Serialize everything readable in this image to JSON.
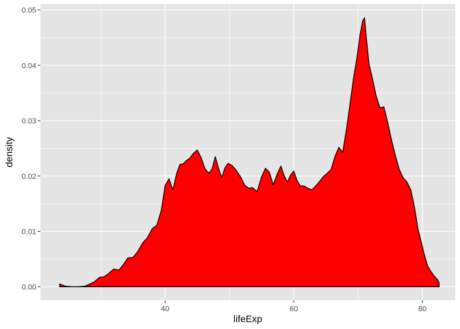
{
  "chart_data": {
    "type": "area",
    "title": "",
    "xlabel": "lifeExp",
    "ylabel": "density",
    "xlim": [
      20.6,
      85.1
    ],
    "ylim": [
      -0.00243,
      0.05105
    ],
    "x_ticks": [
      40,
      60,
      80
    ],
    "x_tick_labels": [
      "40",
      "60",
      "80"
    ],
    "y_ticks": [
      0,
      0.01,
      0.02,
      0.03,
      0.04,
      0.05
    ],
    "y_tick_labels": [
      "0.00",
      "0.01",
      "0.02",
      "0.03",
      "0.04",
      "0.05"
    ],
    "grid": true,
    "legend": "none",
    "colors": {
      "panel_background": "#e5e5e5",
      "grid_line": "#ffffff",
      "fill": "#ff0000",
      "outline": "#000000",
      "tick": "#333333"
    },
    "x": [
      23.6,
      24.5,
      25.5,
      26.5,
      27.5,
      28.3,
      29.0,
      29.8,
      30.5,
      31.2,
      32.0,
      32.8,
      33.5,
      34.2,
      35.0,
      35.7,
      36.5,
      37.2,
      38.0,
      38.7,
      39.4,
      40.0,
      40.6,
      41.2,
      41.8,
      42.3,
      42.8,
      43.3,
      43.8,
      44.4,
      45.0,
      45.6,
      46.2,
      46.8,
      47.3,
      47.8,
      48.3,
      48.8,
      49.3,
      49.8,
      50.4,
      51.0,
      51.7,
      52.4,
      53.0,
      53.6,
      54.3,
      55.0,
      55.6,
      56.2,
      56.8,
      57.4,
      58.0,
      58.5,
      59.0,
      59.5,
      60.0,
      60.5,
      61.0,
      61.6,
      62.2,
      62.8,
      63.4,
      64.0,
      64.6,
      65.2,
      65.8,
      66.4,
      67.0,
      67.6,
      68.2,
      68.8,
      69.3,
      69.8,
      70.3,
      70.7,
      71.0,
      71.3,
      71.7,
      72.2,
      72.8,
      73.4,
      74.0,
      74.6,
      75.2,
      75.8,
      76.4,
      77.0,
      77.6,
      78.2,
      78.8,
      79.3,
      79.8,
      80.3,
      80.8,
      81.3,
      81.8,
      82.4,
      82.6
    ],
    "y": [
      0.0005,
      0.0001,
      0.0,
      0.0,
      0.0001,
      0.0005,
      0.0009,
      0.0017,
      0.0018,
      0.0024,
      0.0032,
      0.003,
      0.004,
      0.0052,
      0.0053,
      0.0063,
      0.0079,
      0.0088,
      0.0105,
      0.0111,
      0.0138,
      0.0183,
      0.0195,
      0.0175,
      0.0205,
      0.0221,
      0.0222,
      0.0228,
      0.0232,
      0.0241,
      0.0247,
      0.0233,
      0.0213,
      0.0205,
      0.0213,
      0.0235,
      0.0214,
      0.0197,
      0.0215,
      0.0223,
      0.0219,
      0.0211,
      0.0199,
      0.0183,
      0.0178,
      0.0179,
      0.0172,
      0.0199,
      0.0214,
      0.0207,
      0.0184,
      0.0203,
      0.0218,
      0.0201,
      0.0189,
      0.0202,
      0.0209,
      0.0192,
      0.0182,
      0.0182,
      0.0178,
      0.0175,
      0.0182,
      0.019,
      0.0199,
      0.0205,
      0.0212,
      0.0235,
      0.0252,
      0.0243,
      0.0285,
      0.0335,
      0.0378,
      0.0412,
      0.0455,
      0.048,
      0.0486,
      0.0448,
      0.0402,
      0.0378,
      0.0345,
      0.0323,
      0.0325,
      0.0297,
      0.0265,
      0.0237,
      0.0212,
      0.0197,
      0.0189,
      0.0175,
      0.0142,
      0.0105,
      0.0082,
      0.0058,
      0.0038,
      0.0028,
      0.002,
      0.0012,
      0.0007
    ]
  }
}
